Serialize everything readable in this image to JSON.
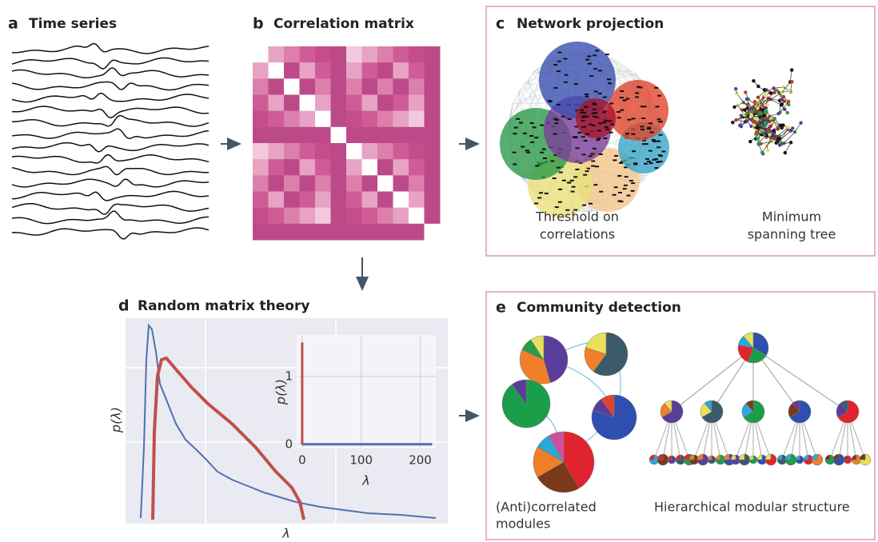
{
  "panels": {
    "a": {
      "label": "a",
      "title": "Time series"
    },
    "b": {
      "label": "b",
      "title": "Correlation matrix"
    },
    "c": {
      "label": "c",
      "title": "Network projection",
      "captions": [
        [
          "Threshold on",
          "correlations"
        ],
        [
          "Minimum",
          "spanning tree"
        ]
      ]
    },
    "d": {
      "label": "d",
      "title": "Random matrix theory",
      "x_label": "λ",
      "y_label": "p(λ)",
      "inset": {
        "type": "line",
        "x_label": "λ",
        "y_label": "p(λ)",
        "xlim": [
          -8,
          225
        ],
        "ylim": [
          -0.05,
          1.6
        ],
        "xticks": [
          0,
          100,
          200
        ],
        "yticks": [
          0,
          1
        ],
        "grid": true,
        "series": [
          {
            "color": "#c0504d",
            "x": [
              0,
              0
            ],
            "values": [
              0,
              1.5
            ]
          },
          {
            "color": "#4c72b0",
            "x": [
              0,
              220
            ],
            "values": [
              0,
              0
            ]
          }
        ]
      }
    },
    "e": {
      "label": "e",
      "title": "Community detection",
      "captions": [
        [
          "(Anti)correlated",
          "modules"
        ],
        [
          "Hierarchical modular structure"
        ]
      ]
    }
  }
}
